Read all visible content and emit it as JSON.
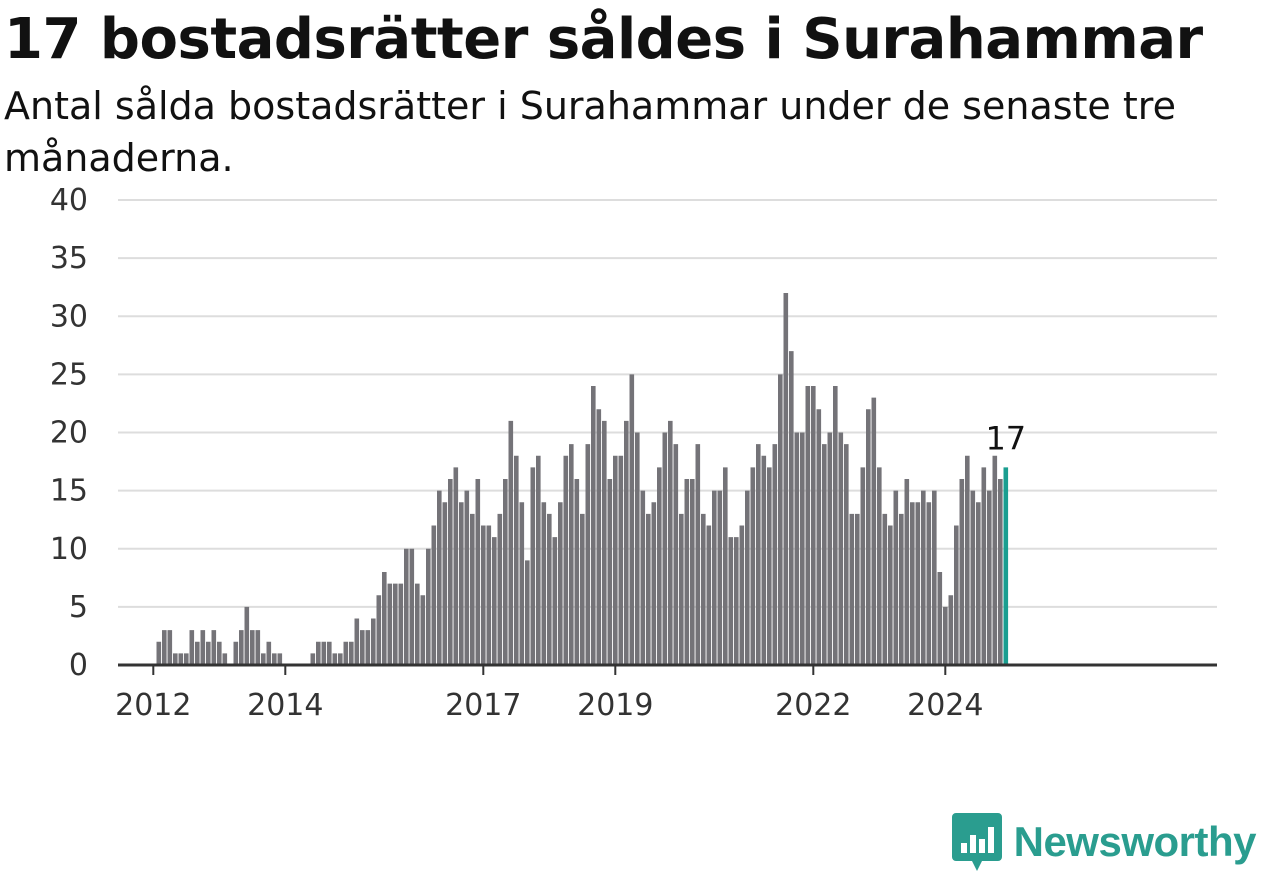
{
  "title": "17 bostadsrätter såldes i Surahammar",
  "subtitle": "Antal sålda bostadsrätter i Surahammar under de senaste tre månaderna.",
  "brand": {
    "name": "Newsworthy",
    "icon": "newsworthy-logo-icon"
  },
  "colors": {
    "bar": "#747378",
    "highlight": "#1a9e90",
    "grid": "#dddddd",
    "axis": "#333333"
  },
  "chart_data": {
    "type": "bar",
    "title": "17 bostadsrätter såldes i Surahammar",
    "xlabel": "",
    "ylabel": "",
    "ylim": [
      0,
      40
    ],
    "yticks": [
      0,
      5,
      10,
      15,
      20,
      25,
      30,
      35,
      40
    ],
    "xticks": [
      "2012",
      "2014",
      "2017",
      "2019",
      "2022",
      "2024"
    ],
    "grid": true,
    "highlight_last": true,
    "last_label": "17",
    "start": "2011-07",
    "frequency": "monthly",
    "values": [
      0,
      0,
      0,
      0,
      0,
      0,
      0,
      2,
      3,
      3,
      1,
      1,
      1,
      3,
      2,
      3,
      2,
      3,
      2,
      1,
      0,
      2,
      3,
      5,
      3,
      3,
      1,
      2,
      1,
      1,
      0,
      0,
      0,
      0,
      0,
      1,
      2,
      2,
      2,
      1,
      1,
      2,
      2,
      4,
      3,
      3,
      4,
      6,
      8,
      7,
      7,
      7,
      10,
      10,
      7,
      6,
      10,
      12,
      15,
      14,
      16,
      17,
      14,
      15,
      13,
      16,
      12,
      12,
      11,
      13,
      16,
      21,
      18,
      14,
      9,
      17,
      18,
      14,
      13,
      11,
      14,
      18,
      19,
      16,
      13,
      19,
      24,
      22,
      21,
      16,
      18,
      18,
      21,
      25,
      20,
      15,
      13,
      14,
      17,
      20,
      21,
      19,
      13,
      16,
      16,
      19,
      13,
      12,
      15,
      15,
      17,
      11,
      11,
      12,
      15,
      17,
      19,
      18,
      17,
      19,
      25,
      32,
      27,
      20,
      20,
      24,
      24,
      22,
      19,
      20,
      24,
      20,
      19,
      13,
      13,
      17,
      22,
      23,
      17,
      13,
      12,
      15,
      13,
      16,
      14,
      14,
      15,
      14,
      15,
      8,
      5,
      6,
      12,
      16,
      18,
      15,
      14,
      17,
      15,
      18,
      16,
      17
    ]
  }
}
